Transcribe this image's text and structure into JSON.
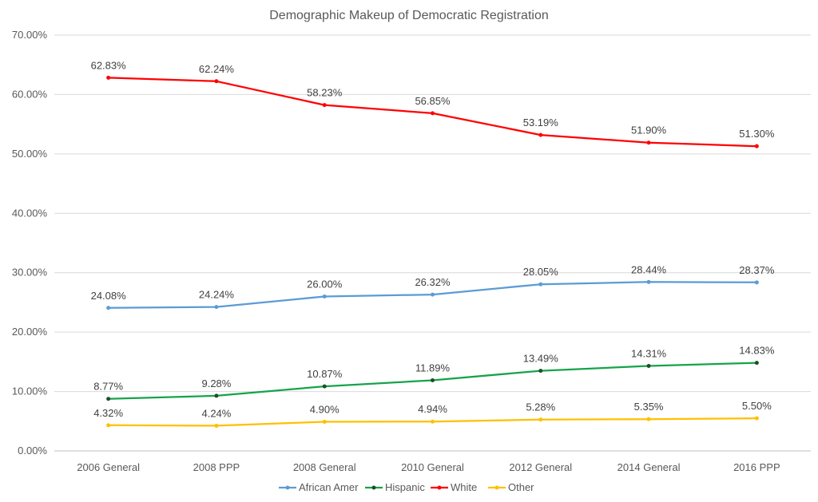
{
  "chart_data": {
    "type": "line",
    "title": "Demographic Makeup of Democratic Registration",
    "categories": [
      "2006 General",
      "2008 PPP",
      "2008 General",
      "2010 General",
      "2012 General",
      "2014 General",
      "2016 PPP"
    ],
    "ylim": [
      0,
      70
    ],
    "y_tick_labels": [
      "0.00%",
      "10.00%",
      "20.00%",
      "30.00%",
      "40.00%",
      "50.00%",
      "60.00%",
      "70.00%"
    ],
    "grid": true,
    "legend_position": "bottom",
    "series": [
      {
        "name": "African Amer",
        "color": "#5b9bd5",
        "values": [
          24.08,
          24.24,
          26.0,
          26.32,
          28.05,
          28.44,
          28.37
        ],
        "labels": [
          "24.08%",
          "24.24%",
          "26.00%",
          "26.32%",
          "28.05%",
          "28.44%",
          "28.37%"
        ]
      },
      {
        "name": "Hispanic",
        "color": "#16a34a",
        "values": [
          8.77,
          9.28,
          10.87,
          11.89,
          13.49,
          14.31,
          14.83
        ],
        "labels": [
          "8.77%",
          "9.28%",
          "10.87%",
          "11.89%",
          "13.49%",
          "14.31%",
          "14.83%"
        ]
      },
      {
        "name": "White",
        "color": "#ff0000",
        "values": [
          62.83,
          62.24,
          58.23,
          56.85,
          53.19,
          51.9,
          51.3
        ],
        "labels": [
          "62.83%",
          "62.24%",
          "58.23%",
          "56.85%",
          "53.19%",
          "51.90%",
          "51.30%"
        ]
      },
      {
        "name": "Other",
        "color": "#ffc000",
        "values": [
          4.32,
          4.24,
          4.9,
          4.94,
          5.28,
          5.35,
          5.5
        ],
        "labels": [
          "4.32%",
          "4.24%",
          "4.90%",
          "4.94%",
          "5.28%",
          "5.35%",
          "5.50%"
        ]
      }
    ]
  }
}
